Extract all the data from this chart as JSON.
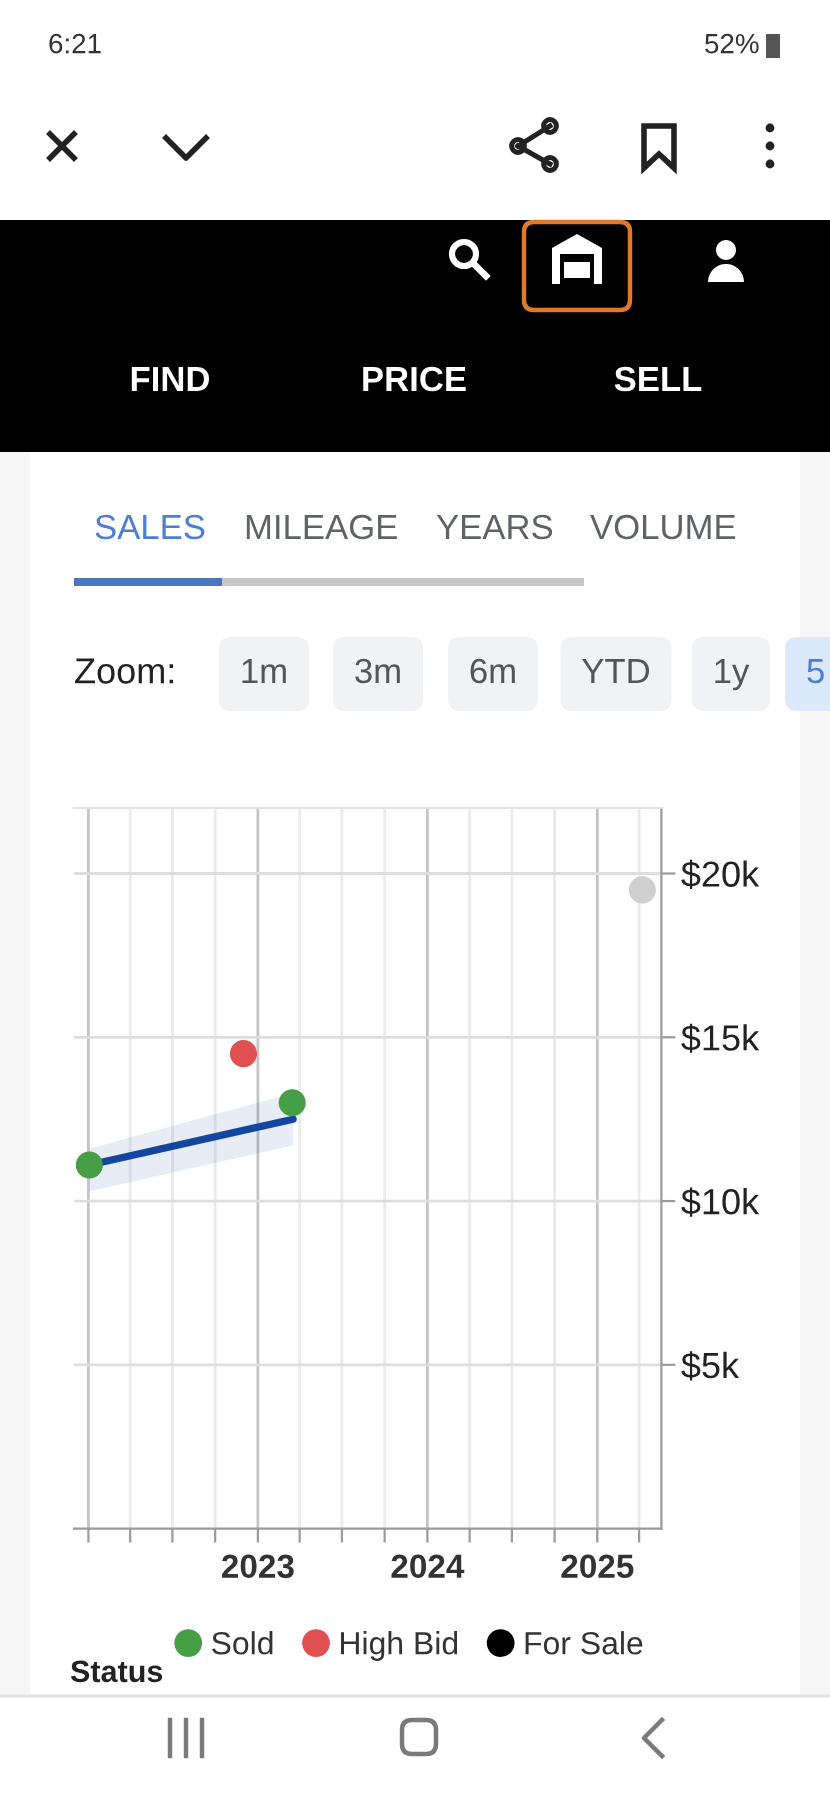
{
  "chart_data": {
    "type": "scatter",
    "series": [
      {
        "name": "Sold",
        "color": "#469e46",
        "x": [
          "2022-01-03",
          "2023-03-16"
        ],
        "values": [
          11100,
          13000
        ]
      },
      {
        "name": "High Bid",
        "color": "#e05050",
        "x": [
          "2022-12-01"
        ],
        "values": [
          14500
        ]
      },
      {
        "name": "For Sale",
        "color": "#000000"
      },
      {
        "color": "#cfcfcf",
        "x": [
          "2025-04-08"
        ],
        "values": [
          19500
        ]
      },
      {
        "type": "line",
        "marker": "none",
        "color": "#1446a0",
        "x": [
          "2022-01-03",
          "2023-03-18"
        ],
        "values": [
          11100,
          12500
        ],
        "lower": [
          10300,
          11700
        ],
        "upper": [
          11600,
          13300
        ]
      }
    ],
    "xlim": [
      "2021-12-01",
      "2025-05-19"
    ],
    "xticks": [
      {
        "value": "2022-01",
        "label": null
      },
      {
        "value": "2022-04",
        "label": null
      },
      {
        "value": "2022-07",
        "label": null
      },
      {
        "value": "2022-10",
        "label": null
      },
      {
        "value": "2023",
        "label": "2023"
      },
      {
        "value": "2023-04",
        "label": null
      },
      {
        "value": "2023-07",
        "label": null
      },
      {
        "value": "2023-10",
        "label": null
      },
      {
        "value": "2024",
        "label": "2024"
      },
      {
        "value": "2024-04",
        "label": null
      },
      {
        "value": "2024-07",
        "label": null
      },
      {
        "value": "2024-10",
        "label": null
      },
      {
        "value": "2025",
        "label": "2025"
      },
      {
        "value": "2025-04",
        "label": null
      }
    ],
    "ylim": [
      0,
      22000
    ],
    "yticks": [
      {
        "value": 5000,
        "label": "$5k"
      },
      {
        "value": 10000,
        "label": "$10k"
      },
      {
        "value": 15000,
        "label": "$15k"
      },
      {
        "value": 20000,
        "label": "$20k"
      }
    ],
    "grid": true,
    "legend": "bottom",
    "marker": "circle",
    "annotations": [
      "6:21",
      "52%",
      "FIND",
      "PRICE",
      "SELL",
      "SALES",
      "MILEAGE",
      "YEARS",
      "VOLUME",
      "Zoom:",
      "1m",
      "3m",
      "6m",
      "YTD",
      "1y",
      "5",
      "Status"
    ]
  }
}
